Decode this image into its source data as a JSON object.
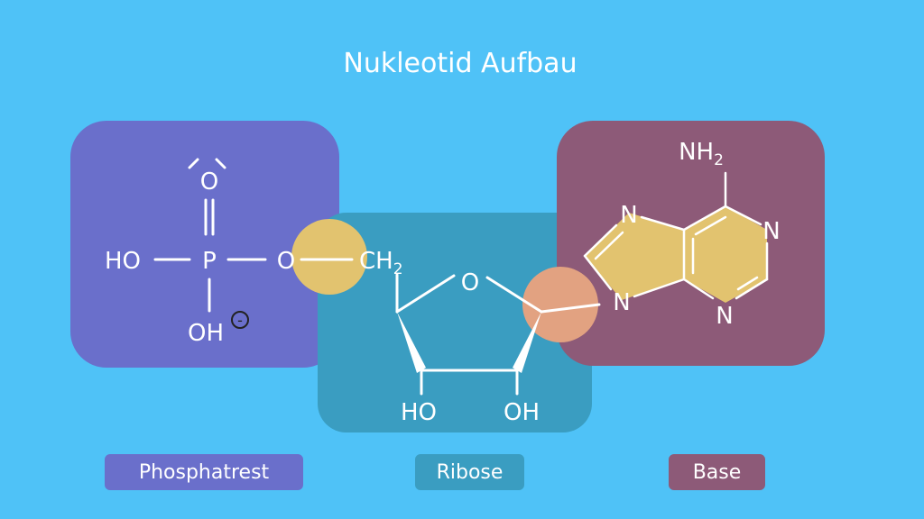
{
  "title": "Nukleotid Aufbau",
  "phosphate": {
    "oxygen_top": "O",
    "phosphorus": "P",
    "hydroxyl_left": "HO",
    "hydroxyl_bottom": "OH",
    "charge": "-",
    "ester_oxygen": "O"
  },
  "ribose": {
    "ch2": "CH",
    "ch2_subscript": "2",
    "ring_oxygen": "O",
    "hydroxyl_left": "HO",
    "hydroxyl_right": "OH"
  },
  "base": {
    "nh2": "NH",
    "nh2_subscript": "2",
    "n_top_left": "N",
    "n_top_right": "N",
    "n_bottom_left": "N",
    "n_bottom_right": "N"
  },
  "labels": {
    "phosphate": "Phosphatrest",
    "ribose": "Ribose",
    "base": "Base"
  },
  "colors": {
    "background": "#4fc2f7",
    "phosphate_box": "#6a6fcb",
    "ribose_box": "#3a9dc1",
    "base_box": "#8d5a78",
    "ester_bond_highlight": "#e2c36f",
    "glycosidic_bond_highlight": "#e2a281",
    "base_ring_fill": "#e2c36f"
  }
}
